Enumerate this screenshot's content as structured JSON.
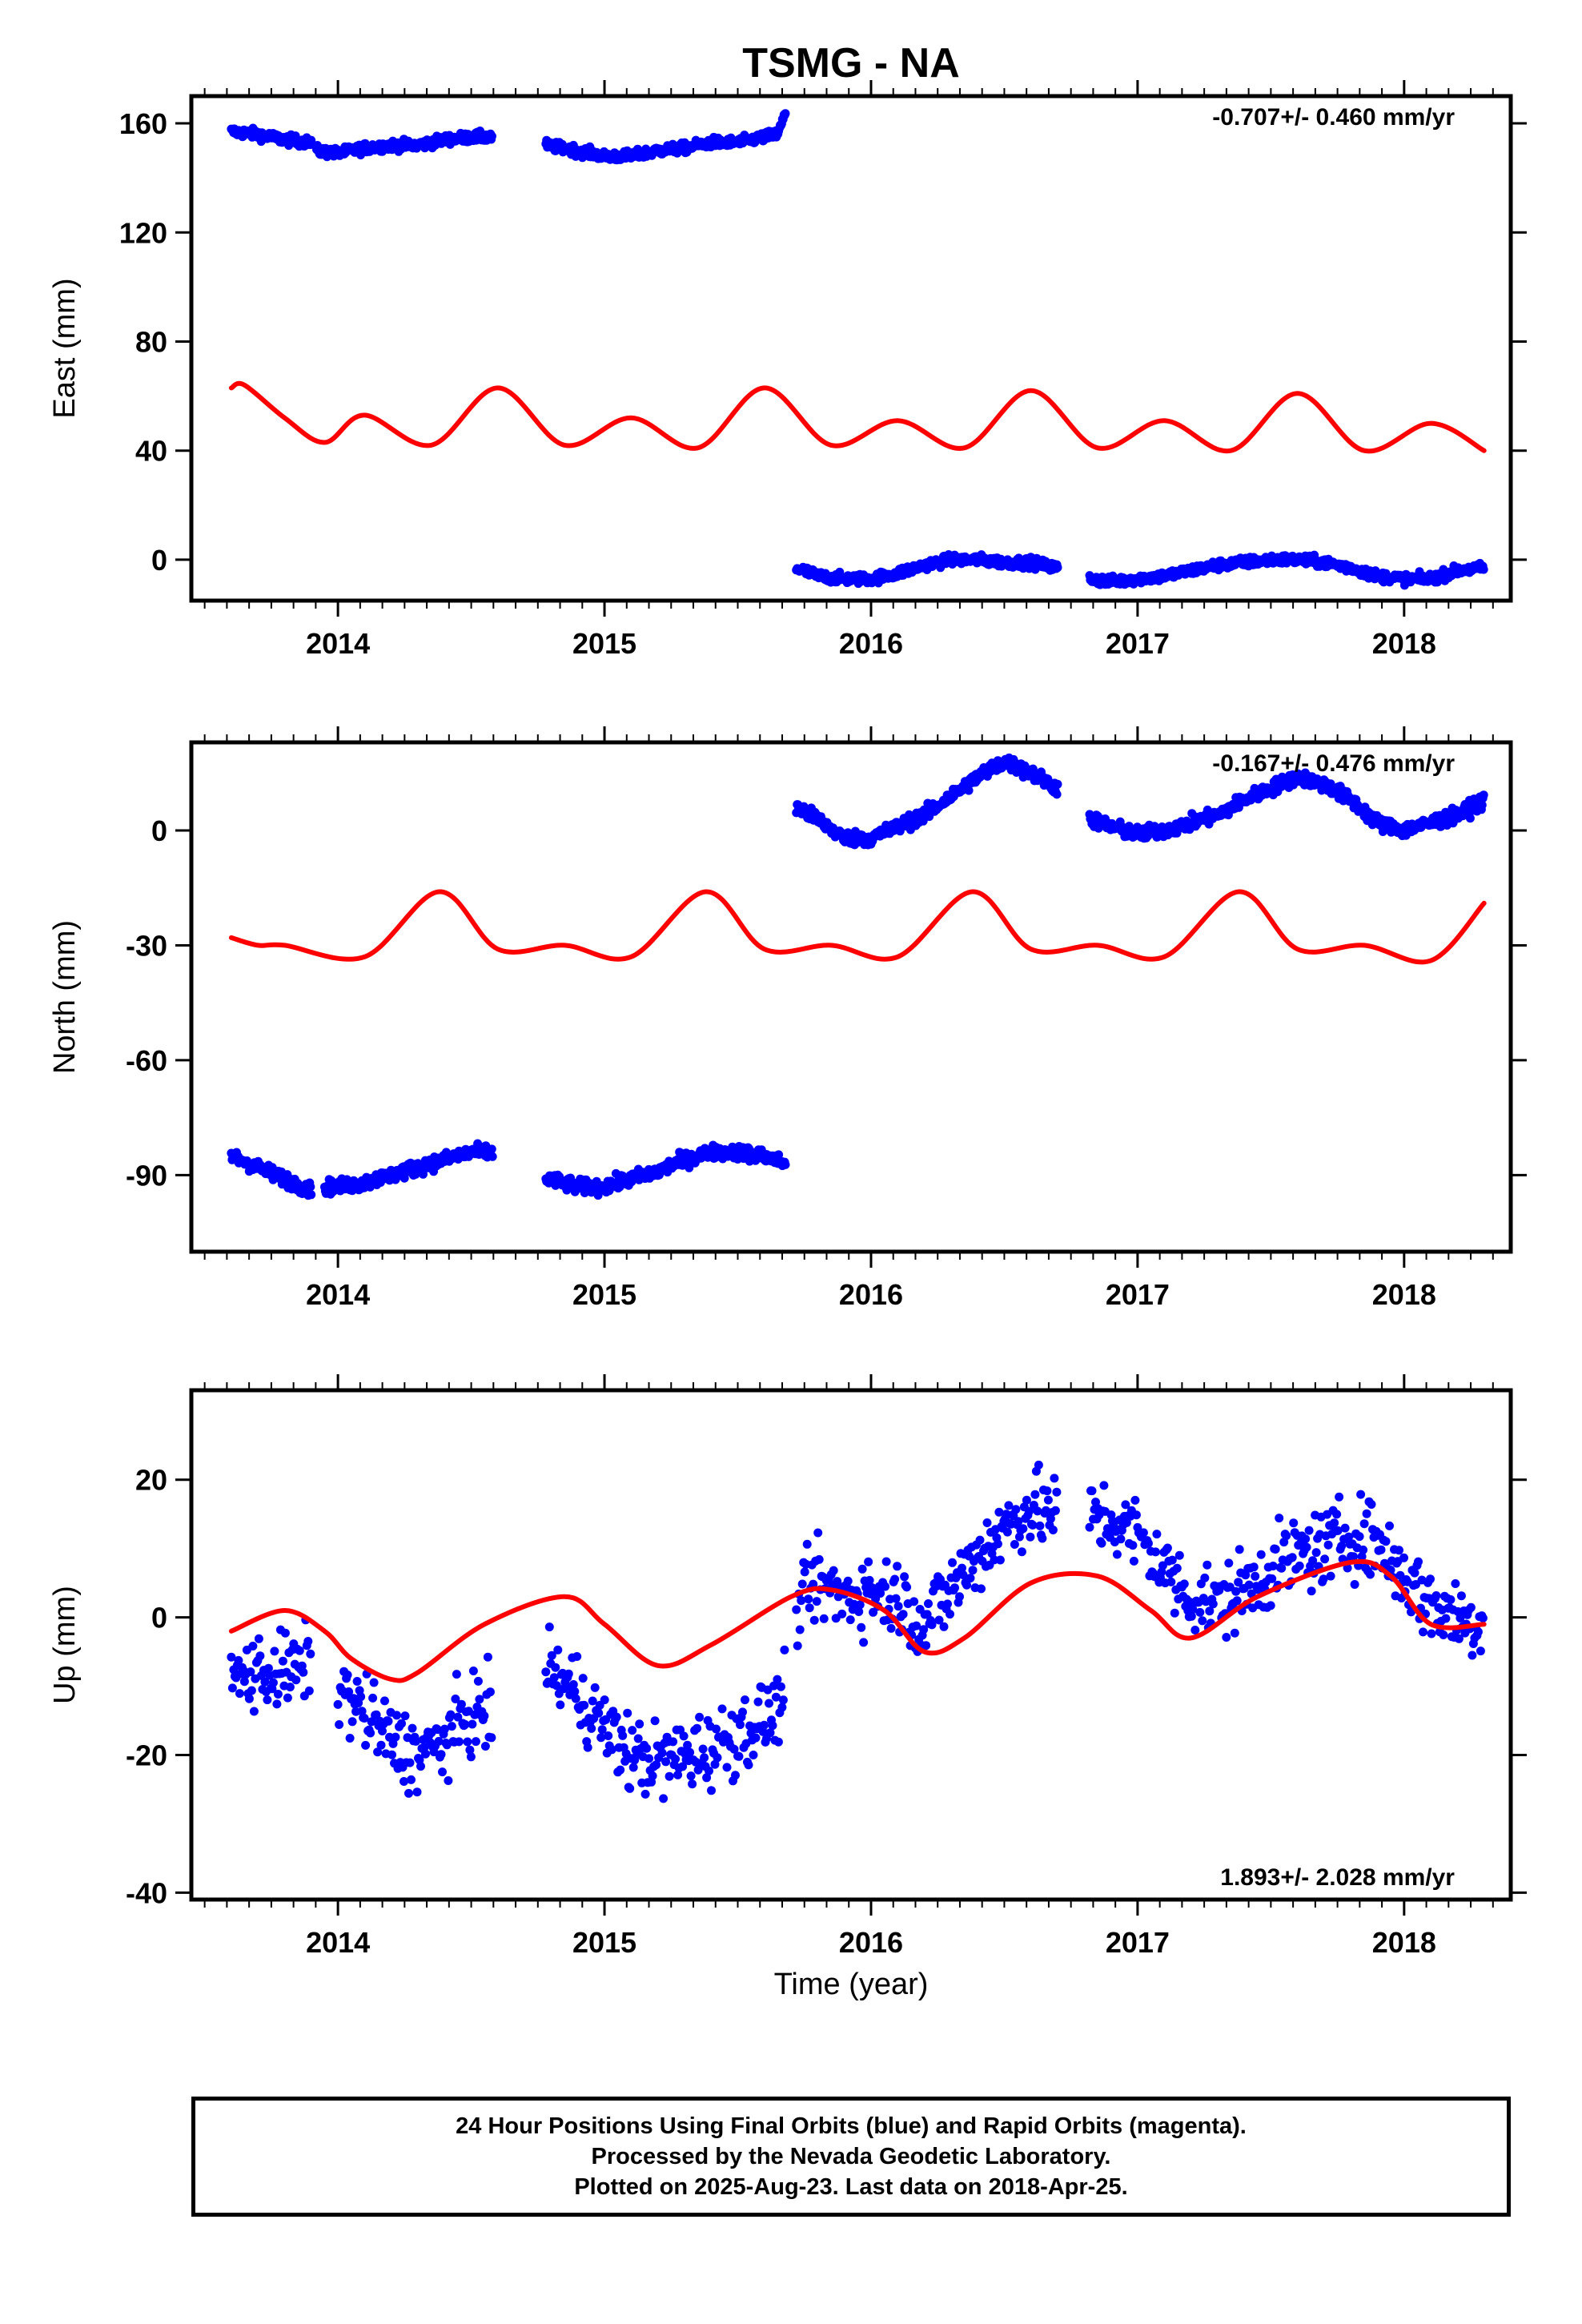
{
  "title": "TSMG - NA",
  "xlabel": "Time (year)",
  "caption": [
    "24 Hour Positions Using Final Orbits (blue) and Rapid Orbits (magenta).",
    "Processed by the Nevada Geodetic Laboratory.",
    "Plotted on 2025-Aug-23. Last data on 2018-Apr-25."
  ],
  "colors": {
    "observed": "#0000ff",
    "model": "#ff0000",
    "axes": "#000000"
  },
  "chart_data": [
    {
      "type": "scatter",
      "ylabel": "East (mm)",
      "xlim": [
        2013.45,
        2018.4
      ],
      "ylim": [
        -15,
        170
      ],
      "xticks": [
        2014,
        2015,
        2016,
        2017,
        2018
      ],
      "yticks": [
        0,
        40,
        80,
        120,
        160
      ],
      "rate": "-0.707+/- 0.460 mm/yr",
      "rate_position": "top-right",
      "observed_segments": [
        {
          "x": [
            2013.6,
            2013.7,
            2013.8,
            2013.9
          ],
          "y": [
            157,
            156,
            154,
            153
          ]
        },
        {
          "x": [
            2013.92,
            2014.0,
            2014.1,
            2014.2,
            2014.3,
            2014.4,
            2014.5,
            2014.58
          ],
          "y": [
            150,
            149,
            151,
            152,
            152,
            154,
            155,
            155
          ]
        },
        {
          "x": [
            2014.78,
            2014.9,
            2015.0,
            2015.1,
            2015.2,
            2015.3,
            2015.4,
            2015.5,
            2015.6,
            2015.65,
            2015.68
          ],
          "y": [
            152,
            150,
            148,
            148,
            150,
            151,
            153,
            153,
            155,
            156,
            164
          ]
        },
        {
          "x": [
            2015.72,
            2015.8,
            2015.9,
            2016.0,
            2016.1,
            2016.2,
            2016.3,
            2016.4,
            2016.5,
            2016.6,
            2016.7
          ],
          "y": [
            -3,
            -6,
            -7,
            -7,
            -5,
            -2,
            0,
            0,
            -1,
            -1,
            -3
          ]
        },
        {
          "x": [
            2016.82,
            2016.9,
            2017.0,
            2017.1,
            2017.2,
            2017.3,
            2017.4,
            2017.5,
            2017.6,
            2017.7,
            2017.8,
            2017.9,
            2018.0,
            2018.1,
            2018.2,
            2018.3
          ],
          "y": [
            -7,
            -8,
            -7,
            -6,
            -4,
            -2,
            -1,
            0,
            0,
            -1,
            -3,
            -6,
            -7,
            -7,
            -4,
            -3
          ]
        }
      ],
      "model": {
        "x": [
          2013.6,
          2013.65,
          2013.8,
          2013.95,
          2014.1,
          2014.35,
          2014.6,
          2014.85,
          2015.1,
          2015.35,
          2015.6,
          2015.85,
          2016.1,
          2016.35,
          2016.6,
          2016.85,
          2017.1,
          2017.35,
          2017.6,
          2017.85,
          2018.1,
          2018.3
        ],
        "y": [
          63,
          64,
          52,
          43,
          53,
          42,
          63,
          42,
          52,
          41,
          63,
          42,
          51,
          41,
          62,
          41,
          51,
          40,
          61,
          40,
          50,
          40
        ]
      }
    },
    {
      "type": "scatter",
      "ylabel": "North (mm)",
      "xlim": [
        2013.45,
        2018.4
      ],
      "ylim": [
        -110,
        23
      ],
      "xticks": [
        2014,
        2015,
        2016,
        2017,
        2018
      ],
      "yticks": [
        -90,
        -60,
        -30,
        0
      ],
      "rate": "-0.167+/- 0.476 mm/yr",
      "rate_position": "top-right",
      "observed_segments": [
        {
          "x": [
            2013.6,
            2013.7,
            2013.8,
            2013.9
          ],
          "y": [
            -85,
            -88,
            -91,
            -94
          ]
        },
        {
          "x": [
            2013.95,
            2014.0,
            2014.1,
            2014.2,
            2014.3,
            2014.4,
            2014.5,
            2014.58
          ],
          "y": [
            -93,
            -93,
            -92,
            -90,
            -88,
            -86,
            -84,
            -84
          ]
        },
        {
          "x": [
            2014.78,
            2014.9,
            2015.0,
            2015.1,
            2015.2,
            2015.3,
            2015.4,
            2015.5,
            2015.6,
            2015.68
          ],
          "y": [
            -91,
            -93,
            -93,
            -91,
            -89,
            -86,
            -84,
            -84,
            -85,
            -87
          ]
        },
        {
          "x": [
            2015.72,
            2015.8,
            2015.9,
            2016.0,
            2016.1,
            2016.2,
            2016.3,
            2016.4,
            2016.5,
            2016.6,
            2016.7
          ],
          "y": [
            6,
            3,
            -2,
            -2,
            1,
            4,
            9,
            14,
            18,
            15,
            11
          ]
        },
        {
          "x": [
            2016.82,
            2016.9,
            2017.0,
            2017.1,
            2017.2,
            2017.3,
            2017.4,
            2017.5,
            2017.6,
            2017.7,
            2017.8,
            2017.9,
            2018.0,
            2018.1,
            2018.2,
            2018.3
          ],
          "y": [
            3,
            1,
            -1,
            0,
            2,
            4,
            8,
            11,
            14,
            12,
            8,
            2,
            0,
            2,
            4,
            8
          ]
        }
      ],
      "model": {
        "x": [
          2013.6,
          2013.7,
          2013.8,
          2014.1,
          2014.38,
          2014.6,
          2014.85,
          2015.1,
          2015.38,
          2015.6,
          2015.85,
          2016.1,
          2016.38,
          2016.6,
          2016.85,
          2017.1,
          2017.38,
          2017.6,
          2017.85,
          2018.1,
          2018.3
        ],
        "y": [
          -28,
          -30,
          -30,
          -33,
          -16,
          -31,
          -30,
          -33,
          -16,
          -31,
          -30,
          -33,
          -16,
          -31,
          -30,
          -33,
          -16,
          -31,
          -30,
          -34,
          -19
        ]
      }
    },
    {
      "type": "scatter",
      "ylabel": "Up (mm)",
      "xlim": [
        2013.45,
        2018.4
      ],
      "ylim": [
        -41,
        33
      ],
      "xticks": [
        2014,
        2015,
        2016,
        2017,
        2018
      ],
      "yticks": [
        -40,
        -20,
        0,
        20
      ],
      "rate": "1.893+/- 2.028 mm/yr",
      "rate_position": "bottom-right",
      "observed_segments": [
        {
          "x": [
            2013.6,
            2013.7,
            2013.8,
            2013.9
          ],
          "y": [
            -9,
            -8,
            -8,
            -7
          ]
        },
        {
          "x": [
            2014.0,
            2014.1,
            2014.2,
            2014.3,
            2014.4,
            2014.5,
            2014.58
          ],
          "y": [
            -10,
            -14,
            -18,
            -20,
            -18,
            -14,
            -14
          ]
        },
        {
          "x": [
            2014.78,
            2014.9,
            2015.0,
            2015.1,
            2015.2,
            2015.3,
            2015.4,
            2015.5,
            2015.6,
            2015.68
          ],
          "y": [
            -7,
            -11,
            -16,
            -20,
            -21,
            -20,
            -19,
            -17,
            -15,
            -12
          ]
        },
        {
          "x": [
            2015.72,
            2015.8,
            2015.9,
            2016.0,
            2016.1,
            2016.2,
            2016.3,
            2016.4,
            2016.5,
            2016.6,
            2016.7
          ],
          "y": [
            2,
            5,
            3,
            4,
            3,
            -1,
            4,
            9,
            13,
            16,
            15
          ]
        },
        {
          "x": [
            2016.82,
            2016.9,
            2017.0,
            2017.1,
            2017.2,
            2017.3,
            2017.4,
            2017.5,
            2017.6,
            2017.7,
            2017.8,
            2017.9,
            2018.0,
            2018.1,
            2018.2,
            2018.3
          ],
          "y": [
            15,
            14,
            12,
            7,
            3,
            2,
            4,
            7,
            9,
            10,
            12,
            11,
            6,
            2,
            0,
            -1
          ]
        }
      ],
      "model": {
        "x": [
          2013.6,
          2013.8,
          2013.95,
          2014.05,
          2014.2,
          2014.3,
          2014.55,
          2014.85,
          2015.0,
          2015.2,
          2015.4,
          2015.7,
          2015.85,
          2016.05,
          2016.2,
          2016.35,
          2016.6,
          2016.85,
          2017.05,
          2017.2,
          2017.45,
          2017.8,
          2017.95,
          2018.1,
          2018.3
        ],
        "y": [
          -2,
          1,
          -2,
          -6,
          -9,
          -8,
          -1,
          3,
          -1,
          -7,
          -4,
          3,
          4,
          1,
          -5,
          -3,
          5,
          6,
          1,
          -3,
          3,
          8,
          6,
          -1,
          -1
        ]
      }
    }
  ]
}
